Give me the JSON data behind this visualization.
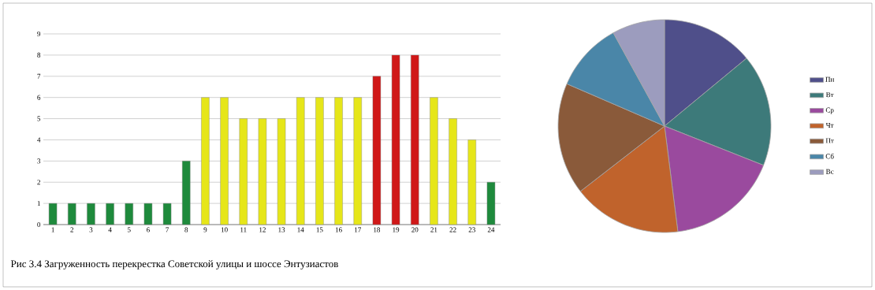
{
  "chart_data": [
    {
      "type": "bar",
      "categories": [
        "1",
        "2",
        "3",
        "4",
        "5",
        "6",
        "7",
        "8",
        "9",
        "10",
        "11",
        "12",
        "13",
        "14",
        "15",
        "16",
        "17",
        "18",
        "19",
        "20",
        "21",
        "22",
        "23",
        "24"
      ],
      "values": [
        1,
        1,
        1,
        1,
        1,
        1,
        1,
        3,
        6,
        6,
        5,
        5,
        5,
        6,
        6,
        6,
        6,
        7,
        8,
        8,
        6,
        5,
        4,
        2
      ],
      "colors": [
        "#1e8a3c",
        "#1e8a3c",
        "#1e8a3c",
        "#1e8a3c",
        "#1e8a3c",
        "#1e8a3c",
        "#1e8a3c",
        "#1e8a3c",
        "#e6e619",
        "#e6e619",
        "#e6e619",
        "#e6e619",
        "#e6e619",
        "#e6e619",
        "#e6e619",
        "#e6e619",
        "#e6e619",
        "#d01818",
        "#d01818",
        "#d01818",
        "#e6e619",
        "#e6e619",
        "#e6e619",
        "#1e8a3c"
      ],
      "ylim": [
        0,
        9
      ],
      "yticks": [
        0,
        1,
        2,
        3,
        4,
        5,
        6,
        7,
        8,
        9
      ],
      "grid": "y",
      "annotations": [
        "Рис 3.4   Загруженность перекрестка Советской улицы и шоссе Энтузиастов"
      ]
    },
    {
      "type": "pie",
      "categories": [
        "Пн",
        "Вт",
        "Ср",
        "Чт",
        "Пт",
        "Сб",
        "Вс"
      ],
      "values": [
        14,
        17,
        17,
        16.5,
        17,
        10.5,
        8
      ],
      "colors": [
        "#4f4f8a",
        "#3d7a7a",
        "#9a4a9e",
        "#c0632c",
        "#8a5a3a",
        "#4a86a8",
        "#9c9cbe"
      ],
      "legend": "right"
    }
  ]
}
